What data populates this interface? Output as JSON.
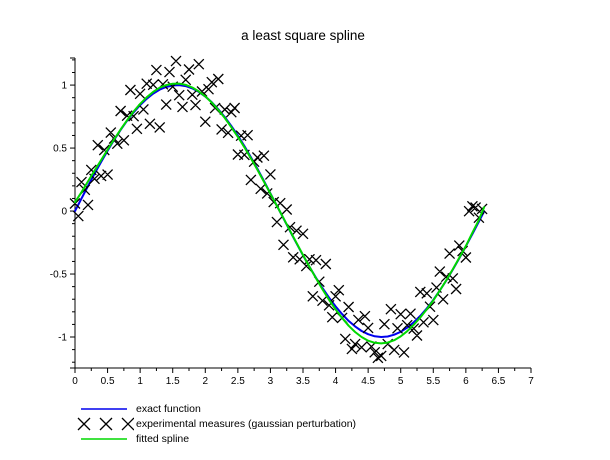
{
  "figure": {
    "title": "a least square spline",
    "background": "#ffffff"
  },
  "legend": {
    "position": "bottom-left",
    "entries": [
      {
        "id": "exact-function",
        "label": "exact function",
        "swatch": "line",
        "color": "#0000ee"
      },
      {
        "id": "experimental-measures",
        "label": "experimental measures (gaussian perturbation)",
        "swatch": "x-markers",
        "color": "#000000"
      },
      {
        "id": "fitted-spline",
        "label": "fitted spline",
        "swatch": "line",
        "color": "#00d800"
      }
    ]
  },
  "chart_data": {
    "type": "line+scatter",
    "title": "a least square spline",
    "xlabel": "",
    "ylabel": "",
    "xlim": [
      0,
      7
    ],
    "ylim": [
      -1.246,
      1.215
    ],
    "grid": false,
    "legend_position": "bottom-left",
    "axis_color": "#000000",
    "x_ticks": {
      "values": [
        0,
        0.5,
        1,
        1.5,
        2,
        2.5,
        3,
        3.5,
        4,
        4.5,
        5,
        5.5,
        6,
        6.5,
        7
      ],
      "labels": [
        "0",
        "0.5",
        "1",
        "1.5",
        "2",
        "2.5",
        "3",
        "3.5",
        "4",
        "4.5",
        "5",
        "5.5",
        "6",
        "6.5",
        "7"
      ],
      "minor": [
        0.25,
        0.75,
        1.25,
        1.75,
        2.25,
        2.75,
        3.25,
        3.75,
        4.25,
        4.75,
        5.25,
        5.75,
        6.25,
        6.75
      ]
    },
    "y_ticks": {
      "values": [
        -1,
        -0.5,
        0,
        0.5,
        1
      ],
      "labels": [
        "-1",
        "-0.5",
        "0",
        "0.5",
        "1"
      ],
      "minor": [
        -1.2,
        -1.1,
        -0.9,
        -0.8,
        -0.7,
        -0.6,
        -0.4,
        -0.3,
        -0.2,
        -0.1,
        0.1,
        0.2,
        0.3,
        0.4,
        0.6,
        0.7,
        0.8,
        0.9,
        1.1,
        1.2
      ]
    },
    "series": [
      {
        "id": "exact-function",
        "name": "exact function",
        "type": "line",
        "color": "#0000ee",
        "width": 2,
        "x": [
          0,
          0.1,
          0.2,
          0.3,
          0.4,
          0.5,
          0.6,
          0.7,
          0.8,
          0.9,
          1,
          1.1,
          1.2,
          1.3,
          1.4,
          1.5,
          1.6,
          1.7,
          1.8,
          1.9,
          2,
          2.1,
          2.2,
          2.3,
          2.4,
          2.5,
          2.6,
          2.7,
          2.8,
          2.9,
          3,
          3.1,
          3.2,
          3.3,
          3.4,
          3.5,
          3.6,
          3.7,
          3.8,
          3.9,
          4,
          4.1,
          4.2,
          4.3,
          4.4,
          4.5,
          4.6,
          4.7,
          4.8,
          4.9,
          5,
          5.1,
          5.2,
          5.3,
          5.4,
          5.5,
          5.6,
          5.7,
          5.8,
          5.9,
          6,
          6.1,
          6.2,
          6.28
        ],
        "y": [
          0,
          0.1,
          0.199,
          0.296,
          0.389,
          0.479,
          0.565,
          0.644,
          0.717,
          0.783,
          0.841,
          0.891,
          0.932,
          0.964,
          0.985,
          0.997,
          1.0,
          0.992,
          0.974,
          0.946,
          0.909,
          0.863,
          0.808,
          0.746,
          0.675,
          0.599,
          0.516,
          0.427,
          0.335,
          0.239,
          0.141,
          0.042,
          -0.058,
          -0.158,
          -0.256,
          -0.351,
          -0.443,
          -0.53,
          -0.612,
          -0.688,
          -0.757,
          -0.818,
          -0.872,
          -0.916,
          -0.952,
          -0.978,
          -0.994,
          -1.0,
          -0.996,
          -0.982,
          -0.959,
          -0.926,
          -0.883,
          -0.832,
          -0.773,
          -0.706,
          -0.631,
          -0.551,
          -0.465,
          -0.374,
          -0.279,
          -0.182,
          -0.083,
          -0.003
        ]
      },
      {
        "id": "experimental-measures",
        "name": "experimental measures (gaussian perturbation)",
        "type": "scatter",
        "marker": "x",
        "color": "#000000",
        "size": 5,
        "x": [
          0,
          0.05,
          0.1,
          0.15,
          0.2,
          0.25,
          0.3,
          0.35,
          0.4,
          0.45,
          0.5,
          0.55,
          0.6,
          0.65,
          0.7,
          0.75,
          0.8,
          0.85,
          0.9,
          0.95,
          1,
          1.05,
          1.1,
          1.15,
          1.2,
          1.25,
          1.3,
          1.35,
          1.4,
          1.45,
          1.5,
          1.55,
          1.6,
          1.65,
          1.7,
          1.75,
          1.8,
          1.85,
          1.9,
          1.95,
          2,
          2.05,
          2.1,
          2.15,
          2.2,
          2.25,
          2.3,
          2.35,
          2.4,
          2.45,
          2.5,
          2.55,
          2.6,
          2.65,
          2.7,
          2.75,
          2.8,
          2.85,
          2.9,
          2.95,
          3,
          3.05,
          3.1,
          3.15,
          3.2,
          3.25,
          3.3,
          3.35,
          3.4,
          3.45,
          3.5,
          3.55,
          3.6,
          3.65,
          3.7,
          3.75,
          3.8,
          3.85,
          3.9,
          3.95,
          4,
          4.05,
          4.1,
          4.15,
          4.2,
          4.25,
          4.3,
          4.35,
          4.4,
          4.45,
          4.5,
          4.55,
          4.6,
          4.65,
          4.7,
          4.75,
          4.8,
          4.85,
          4.9,
          4.95,
          5,
          5.05,
          5.1,
          5.15,
          5.2,
          5.25,
          5.3,
          5.35,
          5.4,
          5.45,
          5.5,
          5.55,
          5.6,
          5.65,
          5.7,
          5.75,
          5.8,
          5.85,
          5.9,
          5.95,
          6,
          6.05,
          6.1,
          6.15,
          6.2,
          6.25
        ],
        "y": [
          0.06,
          -0.04,
          0.23,
          0.169,
          0.049,
          0.327,
          0.256,
          0.523,
          0.279,
          0.485,
          0.289,
          0.623,
          0.575,
          0.535,
          0.794,
          0.562,
          0.757,
          0.961,
          0.753,
          0.653,
          0.931,
          0.807,
          1.011,
          0.693,
          1.002,
          1.119,
          0.664,
          1.006,
          0.845,
          1.103,
          0.987,
          1.19,
          0.92,
          0.827,
          1.042,
          1.124,
          0.924,
          0.841,
          1.166,
          0.949,
          0.709,
          0.967,
          1.023,
          0.817,
          1.048,
          0.648,
          0.806,
          0.621,
          0.785,
          0.818,
          0.449,
          0.598,
          0.446,
          0.602,
          0.247,
          0.392,
          0.425,
          0.177,
          0.439,
          0.14,
          0.291,
          0.071,
          -0.088,
          0.062,
          -0.268,
          0.012,
          -0.128,
          -0.367,
          -0.156,
          -0.383,
          -0.181,
          -0.437,
          -0.383,
          -0.677,
          -0.39,
          -0.561,
          -0.712,
          -0.42,
          -0.748,
          -0.843,
          -0.677,
          -0.628,
          -0.848,
          -1.015,
          -0.762,
          -1.094,
          -1.056,
          -0.864,
          -1.082,
          -0.835,
          -0.928,
          -1.076,
          -1.121,
          -1.165,
          -1.15,
          -0.898,
          -1.056,
          -0.779,
          -1.102,
          -0.931,
          -0.819,
          -1.122,
          -0.906,
          -0.815,
          -0.933,
          -0.988,
          -0.642,
          -0.883,
          -0.653,
          -0.759,
          -0.866,
          -0.608,
          -0.481,
          -0.701,
          -0.521,
          -0.338,
          -0.535,
          -0.619,
          -0.274,
          -0.317,
          -0.369,
          -0.001,
          0.038,
          0.027,
          -0.053,
          0.017
        ]
      },
      {
        "id": "fitted-spline",
        "name": "fitted spline",
        "type": "line",
        "color": "#00d800",
        "width": 2,
        "x": [
          0,
          0.1,
          0.2,
          0.3,
          0.4,
          0.5,
          0.6,
          0.7,
          0.8,
          0.9,
          1,
          1.1,
          1.2,
          1.3,
          1.4,
          1.5,
          1.6,
          1.7,
          1.8,
          1.9,
          2,
          2.1,
          2.2,
          2.3,
          2.4,
          2.5,
          2.6,
          2.7,
          2.8,
          2.9,
          3,
          3.1,
          3.2,
          3.3,
          3.4,
          3.5,
          3.6,
          3.7,
          3.8,
          3.9,
          4,
          4.1,
          4.2,
          4.3,
          4.4,
          4.5,
          4.6,
          4.7,
          4.8,
          4.9,
          5,
          5.1,
          5.2,
          5.3,
          5.4,
          5.5,
          5.6,
          5.7,
          5.8,
          5.9,
          6,
          6.1,
          6.2,
          6.28
        ],
        "y": [
          0.07,
          0.15,
          0.235,
          0.32,
          0.404,
          0.488,
          0.569,
          0.647,
          0.721,
          0.79,
          0.851,
          0.903,
          0.946,
          0.979,
          1.0,
          1.011,
          1.012,
          1.002,
          0.981,
          0.95,
          0.91,
          0.861,
          0.803,
          0.739,
          0.666,
          0.589,
          0.506,
          0.418,
          0.328,
          0.234,
          0.138,
          0.041,
          -0.057,
          -0.156,
          -0.253,
          -0.349,
          -0.443,
          -0.534,
          -0.622,
          -0.705,
          -0.781,
          -0.849,
          -0.91,
          -0.96,
          -1.0,
          -1.029,
          -1.046,
          -1.051,
          -1.044,
          -1.025,
          -0.995,
          -0.954,
          -0.903,
          -0.845,
          -0.78,
          -0.709,
          -0.631,
          -0.549,
          -0.462,
          -0.371,
          -0.277,
          -0.172,
          -0.07,
          0.03
        ]
      }
    ]
  }
}
